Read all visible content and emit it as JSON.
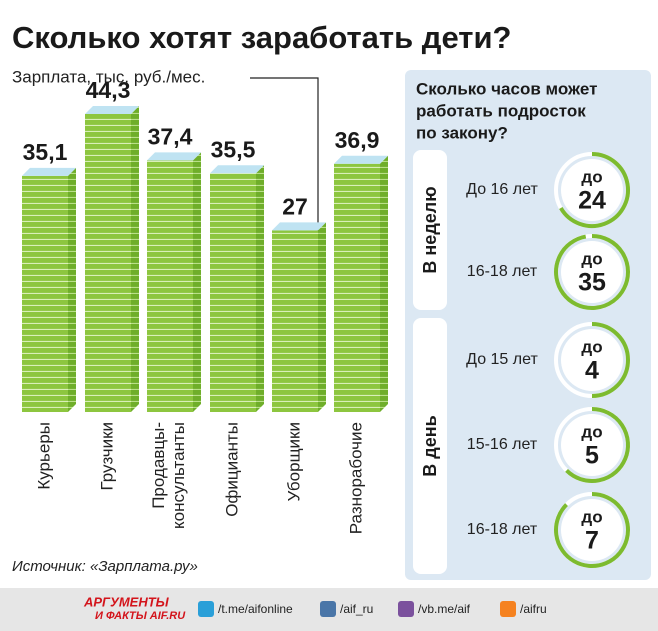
{
  "chart_data": {
    "type": "bar",
    "title": "Сколько хотят заработать дети?",
    "y_label": "Зарплата, тыс. руб./мес.",
    "categories": [
      "Курьеры",
      "Грузчики",
      "Продавцы-консультанты",
      "Официанты",
      "Уборщики",
      "Разнорабочие"
    ],
    "values": [
      35.1,
      44.3,
      37.4,
      35.5,
      27,
      36.9
    ],
    "value_labels": [
      "35,1",
      "44,3",
      "37,4",
      "35,5",
      "27",
      "36,9"
    ],
    "color": "#8dc63f"
  },
  "panel": {
    "title_lines": [
      "Сколько часов может",
      "работать подросток",
      "по закону?"
    ],
    "groups": [
      {
        "label": "В неделю",
        "rows": [
          {
            "age": "До 16 лет",
            "prefix": "до",
            "hours": 24
          },
          {
            "age": "16-18 лет",
            "prefix": "до",
            "hours": 35
          }
        ]
      },
      {
        "label": "В день",
        "rows": [
          {
            "age": "До 15 лет",
            "prefix": "до",
            "hours": 4
          },
          {
            "age": "15-16 лет",
            "prefix": "до",
            "hours": 5
          },
          {
            "age": "16-18 лет",
            "prefix": "до",
            "hours": 7
          }
        ]
      }
    ]
  },
  "source": "Источник: «Зарплата.ру»",
  "footer": {
    "logo_top": "АРГУМЕНТЫ",
    "logo_bottom": "И ФАКТЫ AIF.RU",
    "links": [
      "/t.me/aifonline",
      "/aif_ru",
      "/vb.me/aif",
      "/aifru"
    ]
  }
}
